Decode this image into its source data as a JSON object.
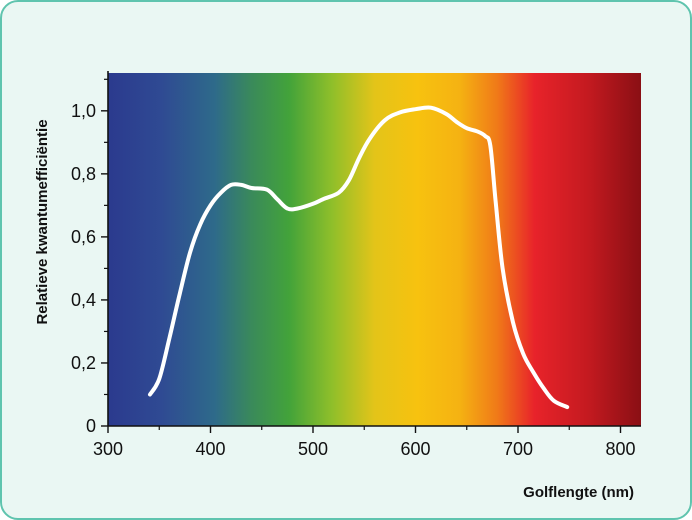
{
  "chart_data": {
    "type": "line",
    "title": "",
    "xlabel": "Golflengte (nm)",
    "ylabel": "Relatieve kwantumefficiëntie",
    "xlim": [
      300,
      820
    ],
    "ylim": [
      0,
      1.12
    ],
    "x_ticks": [
      300,
      400,
      500,
      600,
      700,
      800
    ],
    "x_tick_labels": [
      "300",
      "400",
      "500",
      "600",
      "700",
      "800"
    ],
    "y_ticks": [
      0,
      0.2,
      0.4,
      0.6,
      0.8,
      1.0
    ],
    "y_tick_labels": [
      "0",
      "0,2",
      "0,4",
      "0,6",
      "0,8",
      "1,0"
    ],
    "grid": false,
    "background": "visible spectrum gradient (violet-blue → green → yellow → red)",
    "line_color": "#ffffff",
    "series": [
      {
        "x": [
          341,
          350,
          360,
          370,
          380,
          390,
          400,
          410,
          420,
          430,
          440,
          455,
          465,
          475,
          485,
          500,
          510,
          525,
          535,
          545,
          555,
          570,
          585,
          600,
          615,
          630,
          640,
          650,
          660,
          668,
          673,
          678,
          685,
          695,
          705,
          715,
          725,
          735,
          748
        ],
        "y": [
          0.1,
          0.15,
          0.28,
          0.42,
          0.55,
          0.64,
          0.7,
          0.74,
          0.765,
          0.765,
          0.755,
          0.75,
          0.72,
          0.69,
          0.69,
          0.705,
          0.72,
          0.74,
          0.78,
          0.85,
          0.91,
          0.97,
          0.995,
          1.005,
          1.01,
          0.99,
          0.965,
          0.945,
          0.935,
          0.92,
          0.89,
          0.72,
          0.5,
          0.33,
          0.23,
          0.17,
          0.12,
          0.08,
          0.06
        ]
      }
    ]
  }
}
